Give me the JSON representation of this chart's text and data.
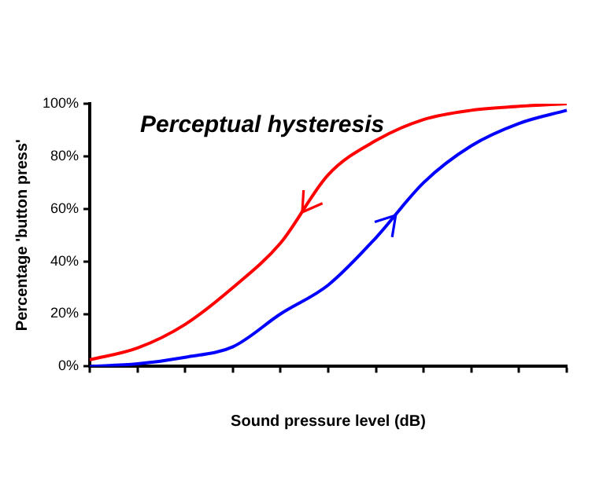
{
  "chart_data": {
    "type": "line",
    "xlabel": "Sound pressure level (dB)",
    "ylabel": "Percentage 'button press'",
    "annotations": [
      "Perceptual hysteresis"
    ],
    "categories": [
      null,
      null,
      null,
      null,
      null,
      null,
      null,
      null,
      null,
      null,
      null
    ],
    "series": [
      {
        "color": "#ff0000",
        "values": [
          2.5,
          7,
          16,
          30,
          47,
          73,
          86,
          94,
          97.5,
          99,
          100
        ]
      },
      {
        "color": "#0000ff",
        "values": [
          0,
          1,
          3.5,
          7.5,
          20,
          31,
          49,
          70,
          84,
          92.5,
          97.5
        ]
      }
    ],
    "ylim": [
      0,
      100
    ],
    "yticks": [
      {
        "value": 0,
        "label": "0%"
      },
      {
        "value": 20,
        "label": "20%"
      },
      {
        "value": 40,
        "label": "40%"
      },
      {
        "value": 60,
        "label": "60%"
      },
      {
        "value": 80,
        "label": "80%"
      },
      {
        "value": 100,
        "label": "100%"
      }
    ],
    "grid": false,
    "legend": false,
    "marker": "none",
    "line_style": "solid"
  }
}
